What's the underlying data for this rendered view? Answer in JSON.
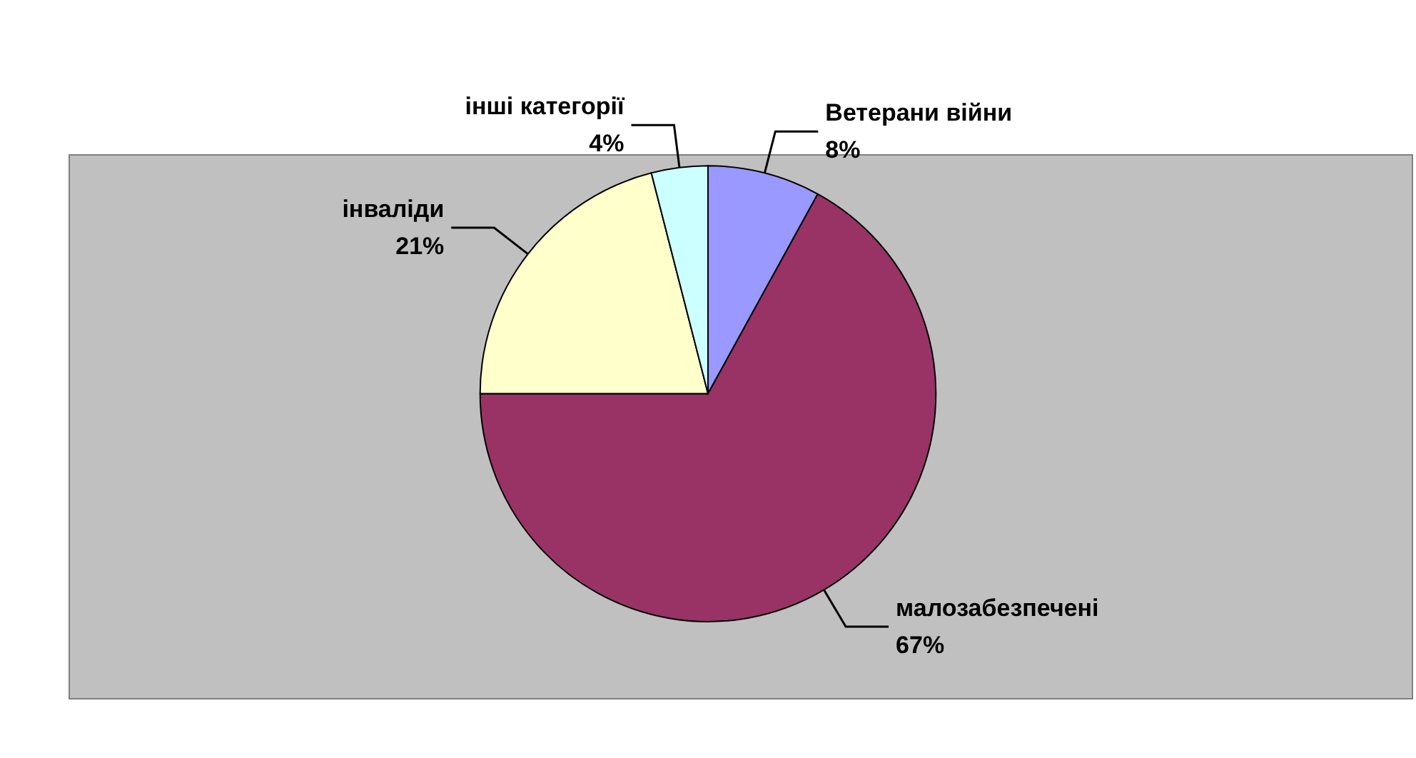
{
  "chart_data": {
    "type": "pie",
    "categories": [
      "Ветерани війни",
      "малозабезпечені",
      "інваліди",
      "інші категорії"
    ],
    "values": [
      8,
      67,
      21,
      4
    ],
    "value_labels": [
      "8%",
      "67%",
      "21%",
      "4%"
    ],
    "colors": [
      "#9999ff",
      "#993366",
      "#ffffcc",
      "#ccffff"
    ],
    "legend": false
  }
}
